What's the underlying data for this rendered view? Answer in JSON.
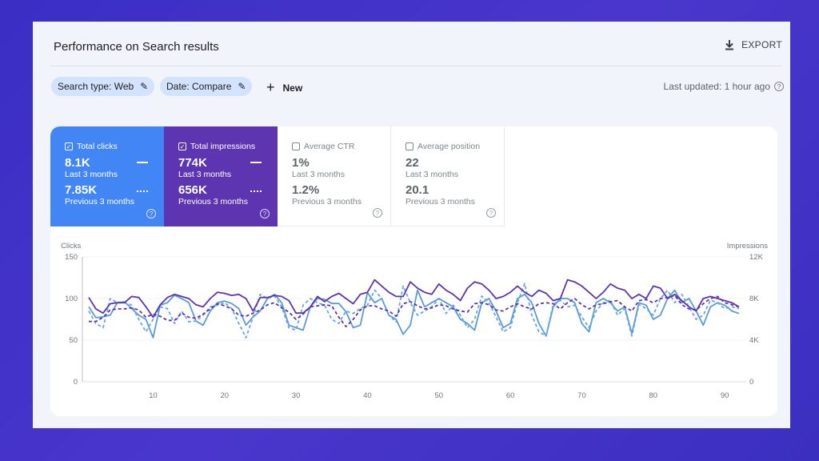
{
  "header": {
    "title": "Performance on Search results",
    "export_label": "EXPORT",
    "export_icon": "download-icon"
  },
  "filters": {
    "search_type": "Search type: Web",
    "date": "Date: Compare",
    "new_label": "New",
    "last_updated": "Last updated: 1 hour ago"
  },
  "metrics": [
    {
      "label": "Total clicks",
      "checked": true,
      "value": "8.1K",
      "period": "Last 3 months",
      "prev_value": "7.85K",
      "prev_period": "Previous 3 months",
      "color": "#4285f4"
    },
    {
      "label": "Total impressions",
      "checked": true,
      "value": "774K",
      "period": "Last 3 months",
      "prev_value": "656K",
      "prev_period": "Previous 3 months",
      "color": "#5e35b1"
    },
    {
      "label": "Average CTR",
      "checked": false,
      "value": "1%",
      "period": "Last 3 months",
      "prev_value": "1.2%",
      "prev_period": "Previous 3 months"
    },
    {
      "label": "Average position",
      "checked": false,
      "value": "22",
      "period": "Last 3 months",
      "prev_value": "20.1",
      "prev_period": "Previous 3 months"
    }
  ],
  "chart_data": {
    "type": "line",
    "ylabel_left": "Clicks",
    "ylabel_right": "Impressions",
    "yticks_left": [
      "150",
      "100",
      "50",
      "0"
    ],
    "ylim_left": [
      0,
      150
    ],
    "yticks_right": [
      "12K",
      "8K",
      "4K",
      "0"
    ],
    "ylim_right": [
      0,
      12
    ],
    "xticks": [
      "10",
      "20",
      "30",
      "40",
      "50",
      "60",
      "70",
      "80",
      "90"
    ],
    "xlim": [
      1,
      92
    ],
    "grid": true,
    "series": [
      {
        "axis": "left",
        "style": "solid",
        "color": "#5b9bd5",
        "values": [
          90,
          77,
          78,
          80,
          95,
          96,
          88,
          80,
          75,
          53,
          92,
          95,
          104,
          100,
          95,
          73,
          68,
          85,
          95,
          97,
          94,
          88,
          68,
          78,
          85,
          100,
          105,
          95,
          68,
          65,
          62,
          90,
          100,
          99,
          94,
          94,
          84,
          65,
          68,
          107,
          95,
          100,
          80,
          75,
          57,
          68,
          110,
          90,
          95,
          100,
          95,
          90,
          75,
          70,
          62,
          95,
          100,
          85,
          65,
          70,
          100,
          105,
          95,
          70,
          55,
          90,
          100,
          100,
          95,
          70,
          60,
          95,
          100,
          95,
          85,
          90,
          58,
          95,
          92,
          75,
          80,
          100,
          110,
          95,
          100,
          85,
          68,
          90,
          95,
          92,
          85,
          82
        ]
      },
      {
        "axis": "left",
        "style": "dashed",
        "color": "#6aa5dc",
        "values": [
          85,
          70,
          65,
          100,
          95,
          95,
          92,
          75,
          60,
          75,
          90,
          88,
          70,
          85,
          72,
          73,
          80,
          90,
          92,
          95,
          88,
          70,
          53,
          78,
          105,
          100,
          103,
          90,
          65,
          62,
          92,
          100,
          95,
          92,
          75,
          70,
          85,
          82,
          88,
          92,
          110,
          100,
          80,
          72,
          115,
          95,
          80,
          85,
          90,
          100,
          82,
          92,
          80,
          65,
          75,
          103,
          95,
          78,
          60,
          65,
          95,
          118,
          80,
          60,
          55,
          93,
          98,
          90,
          92,
          78,
          65,
          85,
          95,
          98,
          80,
          88,
          55,
          93,
          88,
          80,
          100,
          110,
          95,
          105,
          90,
          75,
          80,
          98,
          95,
          88,
          90,
          88
        ]
      },
      {
        "axis": "right",
        "style": "solid",
        "color": "#5e35b1",
        "values": [
          8.1,
          7.0,
          6.6,
          7.5,
          7.6,
          7.6,
          8.2,
          8.1,
          7.2,
          6.2,
          7.4,
          8.1,
          8.4,
          8.2,
          8.0,
          7.4,
          7.2,
          8.0,
          8.6,
          8.5,
          8.3,
          8.4,
          8.0,
          6.8,
          8.1,
          8.1,
          8.3,
          8.2,
          7.8,
          6.6,
          6.6,
          7.2,
          8.2,
          7.7,
          8.2,
          8.5,
          8.0,
          7.5,
          8.4,
          8.6,
          9.8,
          9.2,
          8.6,
          8.2,
          8.2,
          9.6,
          9.0,
          8.6,
          8.4,
          9.4,
          8.8,
          8.4,
          7.8,
          9.0,
          9.6,
          9.4,
          8.8,
          8.0,
          8.2,
          8.6,
          9.2,
          8.6,
          8.2,
          8.8,
          8.5,
          7.8,
          8.0,
          9.8,
          9.6,
          9.2,
          8.6,
          8.0,
          8.6,
          9.4,
          9.0,
          8.8,
          8.0,
          8.4,
          8.0,
          9.2,
          9.0,
          8.0,
          8.4,
          7.8,
          7.2,
          6.8,
          8.0,
          8.2,
          8.0,
          7.8,
          7.6,
          7.2
        ]
      },
      {
        "axis": "right",
        "style": "dashed",
        "color": "#5e35b1",
        "values": [
          5.8,
          5.8,
          6.2,
          6.9,
          7.0,
          7.0,
          7.1,
          6.9,
          6.2,
          6.5,
          6.3,
          5.9,
          5.9,
          6.6,
          6.2,
          6.1,
          6.5,
          7.0,
          7.5,
          7.3,
          7.0,
          6.4,
          6.3,
          6.6,
          6.9,
          7.4,
          7.6,
          7.1,
          6.7,
          6.0,
          6.5,
          7.2,
          7.3,
          7.4,
          7.3,
          6.2,
          5.3,
          6.0,
          6.9,
          7.3,
          7.3,
          7.0,
          6.8,
          6.3,
          7.5,
          7.7,
          7.3,
          7.0,
          7.1,
          7.4,
          7.3,
          7.0,
          6.8,
          6.7,
          7.5,
          7.6,
          7.4,
          6.9,
          6.8,
          7.2,
          7.5,
          7.2,
          7.0,
          7.5,
          7.6,
          7.5,
          7.0,
          7.6,
          8.0,
          7.4,
          7.0,
          7.4,
          7.5,
          7.7,
          7.8,
          7.2,
          6.8,
          7.8,
          7.9,
          7.6,
          8.0,
          8.1,
          8.3,
          7.4,
          7.0,
          6.9,
          7.5,
          8.0,
          8.2,
          7.6,
          7.4,
          7.2
        ]
      }
    ]
  }
}
